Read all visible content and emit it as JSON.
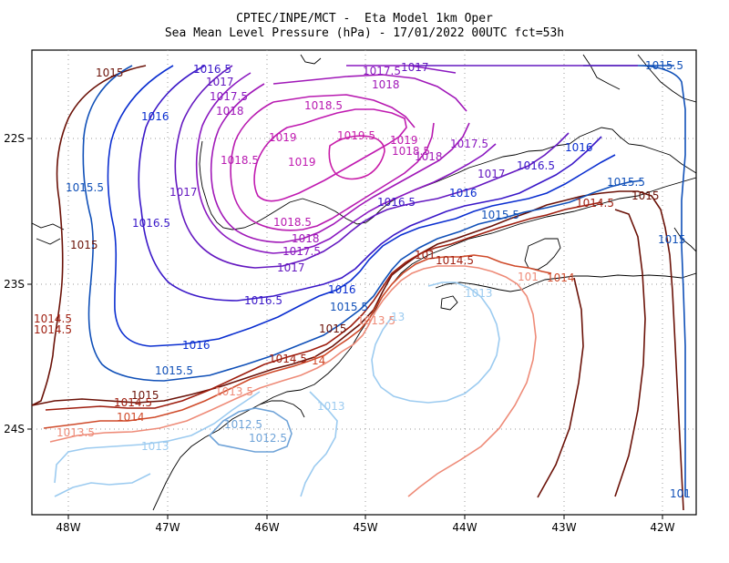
{
  "title": {
    "line1": "CPTEC/INPE/MCT -  Eta Model 1km Oper",
    "line2": "Sea Mean Level Pressure (hPa) - 17/01/2022 00UTC fct=53h"
  },
  "axes": {
    "x_ticks": [
      "48W",
      "47W",
      "46W",
      "45W",
      "44W",
      "43W",
      "42W"
    ],
    "y_ticks": [
      "22S",
      "23S",
      "24S"
    ]
  },
  "colors": {
    "c1012_5": "#6fa3d8",
    "c1013": "#9ccbf0",
    "c1013_5": "#ee8b78",
    "c1014": "#cf4a2a",
    "c1014_5": "#9e1d0e",
    "c1015": "#6b1208",
    "c1015_5": "#1050b8",
    "c1016": "#0a2ed0",
    "c1016_5": "#3a18c8",
    "c1017": "#6418c0",
    "c1017_5": "#8a18c0",
    "c1018": "#a018b8",
    "c1018_5": "#b81ab0",
    "c1019": "#c01ab0",
    "c1019_5": "#c81ca8"
  },
  "contour_labels": [
    {
      "text": "1015",
      "color": "c1015"
    },
    {
      "text": "1016.5",
      "color": "c1016_5"
    },
    {
      "text": "1017",
      "color": "c1017"
    },
    {
      "text": "1017.5",
      "color": "c1017_5"
    },
    {
      "text": "1018",
      "color": "c1018"
    },
    {
      "text": "1018.5",
      "color": "c1018_5"
    },
    {
      "text": "1019",
      "color": "c1019"
    },
    {
      "text": "1019.5",
      "color": "c1019_5"
    },
    {
      "text": "1016",
      "color": "c1016"
    },
    {
      "text": "1015.5",
      "color": "c1015_5"
    },
    {
      "text": "1014.5",
      "color": "c1014_5"
    },
    {
      "text": "1014",
      "color": "c1014"
    },
    {
      "text": "1013.5",
      "color": "c1013_5"
    },
    {
      "text": "1013",
      "color": "c1013"
    },
    {
      "text": "1012.5",
      "color": "c1012_5"
    },
    {
      "text": "14",
      "color": "c1014"
    },
    {
      "text": "101",
      "color": "c1015_5"
    }
  ]
}
